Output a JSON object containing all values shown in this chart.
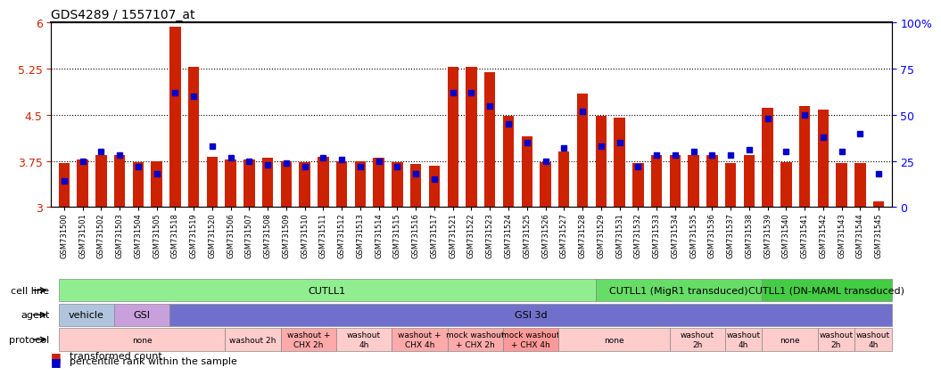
{
  "title": "GDS4289 / 1557107_at",
  "bar_color": "#CC2200",
  "dot_color": "#0000CC",
  "ylim_left": [
    3.0,
    6.0
  ],
  "ylim_right": [
    0,
    100
  ],
  "yticks_left": [
    3.0,
    3.75,
    4.5,
    5.25,
    6.0
  ],
  "ytick_labels_left": [
    "3",
    "3.75",
    "4.5",
    "5.25",
    "6"
  ],
  "yticks_right": [
    0,
    25,
    50,
    75,
    100
  ],
  "ytick_labels_right": [
    "0",
    "25",
    "50",
    "75",
    "100%"
  ],
  "samples": [
    "GSM731500",
    "GSM731501",
    "GSM731502",
    "GSM731503",
    "GSM731504",
    "GSM731505",
    "GSM731518",
    "GSM731519",
    "GSM731520",
    "GSM731506",
    "GSM731507",
    "GSM731508",
    "GSM731509",
    "GSM731510",
    "GSM731511",
    "GSM731512",
    "GSM731513",
    "GSM731514",
    "GSM731515",
    "GSM731516",
    "GSM731517",
    "GSM731521",
    "GSM731522",
    "GSM731523",
    "GSM731524",
    "GSM731525",
    "GSM731526",
    "GSM731527",
    "GSM731528",
    "GSM731529",
    "GSM731531",
    "GSM731532",
    "GSM731533",
    "GSM731534",
    "GSM731535",
    "GSM731536",
    "GSM731537",
    "GSM731538",
    "GSM731539",
    "GSM731540",
    "GSM731541",
    "GSM731542",
    "GSM731543",
    "GSM731544",
    "GSM731545"
  ],
  "bar_values": [
    3.72,
    3.78,
    3.85,
    3.85,
    3.73,
    3.75,
    5.93,
    5.28,
    3.82,
    3.78,
    3.78,
    3.8,
    3.75,
    3.73,
    3.82,
    3.75,
    3.75,
    3.8,
    3.73,
    3.7,
    3.68,
    5.28,
    5.28,
    5.2,
    4.48,
    4.15,
    3.73,
    3.9,
    4.85,
    4.48,
    4.45,
    3.71,
    3.85,
    3.85,
    3.85,
    3.85,
    3.72,
    3.85,
    4.62,
    3.73,
    4.65,
    4.58,
    3.72,
    3.72,
    3.1
  ],
  "percentile_values": [
    14,
    25,
    30,
    28,
    22,
    18,
    62,
    60,
    33,
    27,
    25,
    23,
    24,
    22,
    27,
    26,
    22,
    25,
    22,
    18,
    15,
    62,
    62,
    55,
    45,
    35,
    25,
    32,
    52,
    33,
    35,
    22,
    28,
    28,
    30,
    28,
    28,
    31,
    48,
    30,
    50,
    38,
    30,
    40,
    18
  ],
  "cell_line_regions": [
    {
      "start": 0,
      "end": 29,
      "label": "CUTLL1",
      "color": "#90EE90"
    },
    {
      "start": 29,
      "end": 38,
      "label": "CUTLL1 (MigR1 transduced)",
      "color": "#66DD66"
    },
    {
      "start": 38,
      "end": 45,
      "label": "CUTLL1 (DN-MAML transduced)",
      "color": "#44CC44"
    }
  ],
  "agent_regions": [
    {
      "start": 0,
      "end": 3,
      "label": "vehicle",
      "color": "#B0C4DE"
    },
    {
      "start": 3,
      "end": 6,
      "label": "GSI",
      "color": "#C8A0DC"
    },
    {
      "start": 6,
      "end": 45,
      "label": "GSI 3d",
      "color": "#7070CC"
    }
  ],
  "protocol_regions": [
    {
      "start": 0,
      "end": 9,
      "label": "none",
      "color": "#FFCCCC"
    },
    {
      "start": 9,
      "end": 12,
      "label": "washout 2h",
      "color": "#FFCCCC"
    },
    {
      "start": 12,
      "end": 15,
      "label": "washout +\nCHX 2h",
      "color": "#FFAAAA"
    },
    {
      "start": 15,
      "end": 18,
      "label": "washout\n4h",
      "color": "#FFCCCC"
    },
    {
      "start": 18,
      "end": 21,
      "label": "washout +\nCHX 4h",
      "color": "#FFAAAA"
    },
    {
      "start": 21,
      "end": 24,
      "label": "mock washout\n+ CHX 2h",
      "color": "#FFAAAA"
    },
    {
      "start": 24,
      "end": 27,
      "label": "mock washout\n+ CHX 4h",
      "color": "#FF9999"
    },
    {
      "start": 27,
      "end": 33,
      "label": "none",
      "color": "#FFCCCC"
    },
    {
      "start": 33,
      "end": 36,
      "label": "washout\n2h",
      "color": "#FFCCCC"
    },
    {
      "start": 36,
      "end": 38,
      "label": "washout\n4h",
      "color": "#FFCCCC"
    },
    {
      "start": 38,
      "end": 41,
      "label": "none",
      "color": "#FFCCCC"
    },
    {
      "start": 41,
      "end": 43,
      "label": "washout\n2h",
      "color": "#FFCCCC"
    },
    {
      "start": 43,
      "end": 45,
      "label": "washout\n4h",
      "color": "#FFCCCC"
    }
  ],
  "legend_items": [
    {
      "color": "#CC2200",
      "label": "transformed count"
    },
    {
      "color": "#0000CC",
      "label": "percentile rank within the sample"
    }
  ]
}
